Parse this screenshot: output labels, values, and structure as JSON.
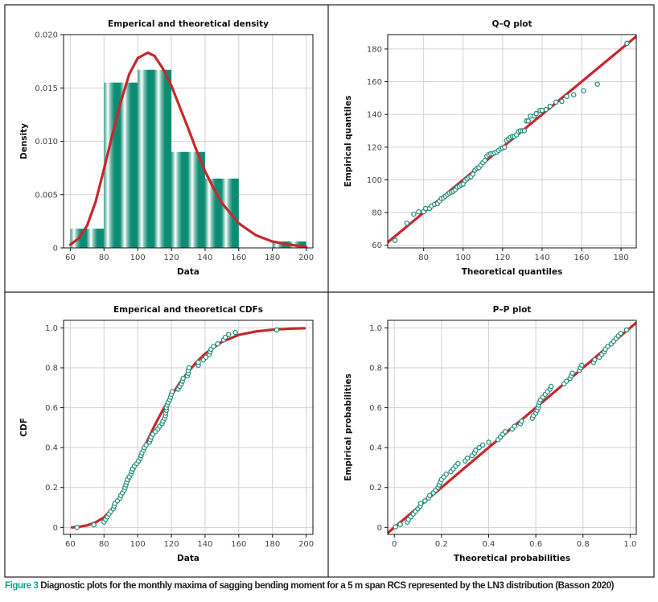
{
  "caption": {
    "label": "Figure 3",
    "text": "Diagnostic plots for the monthly maxima of sagging bending moment for a 5 m span RCS represented by the LN3 distribution (Basson 2020)"
  },
  "colors": {
    "fit_line": "#c8282d",
    "points": "#2a8f7f",
    "bars": "#0d8c74",
    "grid": "#d2d2d2",
    "caption_label": "#14a08a"
  },
  "chart_data": [
    {
      "id": "density",
      "type": "bar",
      "title": "Emperical and theoretical density",
      "xlabel": "Data",
      "ylabel": "Density",
      "xlim": [
        56,
        204
      ],
      "ylim": [
        0,
        0.02
      ],
      "xticks": [
        60,
        80,
        100,
        120,
        140,
        160,
        180,
        200
      ],
      "xtick_labels": [
        "60",
        "80",
        "100",
        "120",
        "140",
        "160",
        "180",
        "200"
      ],
      "yticks": [
        0,
        0.005,
        0.01,
        0.015,
        0.02
      ],
      "ytick_labels": [
        "0",
        "0.005",
        "0.010",
        "0.015",
        "0.020"
      ],
      "grid": true,
      "bins": [
        [
          60,
          80
        ],
        [
          80,
          100
        ],
        [
          100,
          120
        ],
        [
          120,
          140
        ],
        [
          140,
          160
        ],
        [
          160,
          180
        ],
        [
          180,
          200
        ]
      ],
      "values": [
        0.0018,
        0.0155,
        0.0167,
        0.009,
        0.0065,
        0,
        0.0006
      ],
      "curve": {
        "x": [
          60,
          65,
          70,
          75,
          80,
          85,
          90,
          95,
          100,
          106,
          110,
          115,
          120,
          125,
          130,
          135,
          140,
          145,
          150,
          160,
          170,
          180,
          190,
          200
        ],
        "y": [
          0.0003,
          0.0009,
          0.0021,
          0.0043,
          0.0074,
          0.0106,
          0.0137,
          0.0163,
          0.0178,
          0.0183,
          0.018,
          0.0168,
          0.0152,
          0.0132,
          0.0112,
          0.0091,
          0.0072,
          0.0056,
          0.0042,
          0.0023,
          0.0012,
          0.0006,
          0.0003,
          0.0001
        ]
      }
    },
    {
      "id": "qq",
      "type": "scatter",
      "title": "Q–Q plot",
      "xlabel": "Theoretical quantiles",
      "ylabel": "Empirical quantiles",
      "xlim": [
        61.8,
        187.7
      ],
      "ylim": [
        58.4,
        188.8
      ],
      "xticks": [
        80,
        100,
        120,
        140,
        160,
        180
      ],
      "xtick_labels": [
        "80",
        "100",
        "120",
        "140",
        "160",
        "180"
      ],
      "yticks": [
        60,
        80,
        100,
        120,
        140,
        160,
        180
      ],
      "ytick_labels": [
        "60",
        "80",
        "100",
        "120",
        "140",
        "160",
        "180"
      ],
      "grid": true,
      "line": {
        "x": [
          61.8,
          187.7
        ],
        "y": [
          61.8,
          187.7
        ]
      },
      "x": [
        65.5,
        71.5,
        75,
        77.5,
        80,
        81,
        83,
        84,
        85.5,
        87,
        88,
        89,
        90,
        91,
        92,
        93,
        94,
        95,
        96,
        97,
        98,
        99,
        100,
        101,
        102,
        103,
        104,
        105,
        106,
        107,
        108,
        109,
        110,
        111,
        112,
        113,
        114,
        115,
        116,
        117,
        118,
        119,
        120,
        121,
        122,
        123,
        124,
        125,
        126,
        127,
        128,
        129,
        130,
        131,
        132,
        133,
        134,
        136,
        137,
        139,
        140,
        142,
        144,
        147,
        150,
        152.5,
        156,
        161,
        168,
        183
      ],
      "y": [
        63,
        73.5,
        79,
        80.5,
        80.5,
        82.5,
        82.5,
        84,
        85,
        85.5,
        87,
        88.5,
        89,
        90,
        91,
        92,
        92.5,
        93,
        94,
        95.5,
        96,
        97,
        97.5,
        99.5,
        100.5,
        101.5,
        102,
        103.5,
        106,
        107,
        107.5,
        109,
        110.5,
        112,
        114.5,
        115.5,
        116,
        116,
        116.5,
        117,
        118,
        119,
        119.5,
        120,
        124,
        125,
        126,
        126.5,
        126.5,
        127.5,
        129.5,
        130,
        130,
        130,
        136,
        136,
        139,
        139,
        140.5,
        142.5,
        142.5,
        143,
        145,
        147.5,
        148,
        151,
        152,
        154.5,
        158.5,
        183.5
      ]
    },
    {
      "id": "cdf",
      "type": "line",
      "title": "Emperical and theoretical CDFs",
      "xlabel": "Data",
      "ylabel": "CDF",
      "xlim": [
        56,
        204
      ],
      "ylim": [
        -0.035,
        1.038
      ],
      "xticks": [
        60,
        80,
        100,
        120,
        140,
        160,
        180,
        200
      ],
      "xtick_labels": [
        "60",
        "80",
        "100",
        "120",
        "140",
        "160",
        "180",
        "200"
      ],
      "yticks": [
        0,
        0.2,
        0.4,
        0.6,
        0.8,
        1.0
      ],
      "ytick_labels": [
        "0",
        "0.2",
        "0.4",
        "0.6",
        "0.8",
        "1.0"
      ],
      "grid": true,
      "curve": {
        "x": [
          61,
          65,
          70,
          75,
          80,
          85,
          90,
          95,
          100,
          105,
          110,
          115,
          120,
          125,
          130,
          135,
          140,
          150,
          160,
          170,
          180,
          190,
          199
        ],
        "y": [
          0,
          0.003,
          0.01,
          0.025,
          0.05,
          0.095,
          0.16,
          0.24,
          0.33,
          0.42,
          0.51,
          0.59,
          0.66,
          0.725,
          0.78,
          0.83,
          0.87,
          0.93,
          0.965,
          0.982,
          0.991,
          0.996,
          0.998
        ]
      },
      "points": {
        "x": [
          64,
          74,
          80,
          81,
          82,
          83,
          84,
          85.5,
          86,
          86.5,
          88,
          89.5,
          90,
          91,
          92,
          92.5,
          93,
          93.5,
          94,
          95,
          96,
          96.5,
          97,
          98,
          99.5,
          100.5,
          101.5,
          102,
          102.5,
          103.5,
          104,
          105,
          107,
          107.5,
          108,
          109,
          110.5,
          112,
          113,
          114.5,
          115,
          116,
          116.5,
          116.5,
          117,
          117,
          117.5,
          118,
          119,
          119.5,
          120,
          120.5,
          124,
          125,
          126,
          126.5,
          127,
          129.5,
          130,
          130,
          130.5,
          136,
          136,
          139,
          140.5,
          142.5,
          143,
          143.5,
          145,
          147.5,
          151,
          152,
          154,
          158,
          182.5
        ],
        "y": [
          0,
          0.013,
          0.027,
          0.04,
          0.053,
          0.067,
          0.08,
          0.093,
          0.107,
          0.12,
          0.133,
          0.147,
          0.16,
          0.173,
          0.187,
          0.2,
          0.213,
          0.227,
          0.24,
          0.253,
          0.267,
          0.28,
          0.293,
          0.307,
          0.32,
          0.333,
          0.347,
          0.36,
          0.373,
          0.387,
          0.4,
          0.413,
          0.427,
          0.44,
          0.453,
          0.467,
          0.48,
          0.493,
          0.507,
          0.52,
          0.533,
          0.547,
          0.56,
          0.573,
          0.587,
          0.6,
          0.613,
          0.627,
          0.64,
          0.653,
          0.667,
          0.68,
          0.693,
          0.707,
          0.72,
          0.733,
          0.747,
          0.76,
          0.773,
          0.787,
          0.8,
          0.813,
          0.827,
          0.84,
          0.853,
          0.867,
          0.88,
          0.893,
          0.907,
          0.92,
          0.94,
          0.953,
          0.967,
          0.977,
          0.99
        ]
      }
    },
    {
      "id": "pp",
      "type": "scatter",
      "title": "P–P plot",
      "xlabel": "Theoretical probabilities",
      "ylabel": "Empirical probabilities",
      "xlim": [
        -0.028,
        1.026
      ],
      "ylim": [
        -0.035,
        1.038
      ],
      "xticks": [
        0,
        0.2,
        0.4,
        0.6,
        0.8,
        1.0
      ],
      "xtick_labels": [
        "0",
        "0.2",
        "0.4",
        "0.6",
        "0.8",
        "1.0"
      ],
      "yticks": [
        0,
        0.2,
        0.4,
        0.6,
        0.8,
        1.0
      ],
      "ytick_labels": [
        "0",
        "0.2",
        "0.4",
        "0.6",
        "0.8",
        "1.0"
      ],
      "grid": true,
      "line": {
        "x": [
          -0.035,
          1.04
        ],
        "y": [
          -0.035,
          1.04
        ]
      },
      "x": [
        0.005,
        0.025,
        0.055,
        0.06,
        0.07,
        0.08,
        0.09,
        0.1,
        0.11,
        0.112,
        0.13,
        0.145,
        0.15,
        0.165,
        0.175,
        0.185,
        0.19,
        0.195,
        0.2,
        0.21,
        0.22,
        0.24,
        0.25,
        0.26,
        0.27,
        0.3,
        0.31,
        0.33,
        0.34,
        0.345,
        0.36,
        0.375,
        0.4,
        0.44,
        0.45,
        0.46,
        0.47,
        0.5,
        0.51,
        0.535,
        0.54,
        0.585,
        0.59,
        0.6,
        0.605,
        0.61,
        0.612,
        0.615,
        0.62,
        0.63,
        0.64,
        0.65,
        0.66,
        0.665,
        0.72,
        0.73,
        0.745,
        0.75,
        0.755,
        0.785,
        0.79,
        0.795,
        0.845,
        0.85,
        0.87,
        0.88,
        0.89,
        0.895,
        0.905,
        0.92,
        0.93,
        0.94,
        0.95,
        0.96,
        0.985
      ],
      "y": [
        0.003,
        0.015,
        0.027,
        0.04,
        0.053,
        0.067,
        0.08,
        0.093,
        0.107,
        0.12,
        0.133,
        0.147,
        0.16,
        0.173,
        0.187,
        0.2,
        0.213,
        0.227,
        0.24,
        0.253,
        0.267,
        0.28,
        0.293,
        0.307,
        0.32,
        0.333,
        0.347,
        0.36,
        0.373,
        0.387,
        0.4,
        0.413,
        0.427,
        0.44,
        0.453,
        0.467,
        0.48,
        0.493,
        0.507,
        0.52,
        0.533,
        0.547,
        0.56,
        0.573,
        0.587,
        0.6,
        0.613,
        0.627,
        0.64,
        0.653,
        0.667,
        0.68,
        0.693,
        0.707,
        0.72,
        0.733,
        0.747,
        0.76,
        0.773,
        0.787,
        0.8,
        0.813,
        0.827,
        0.84,
        0.853,
        0.867,
        0.88,
        0.893,
        0.907,
        0.92,
        0.933,
        0.947,
        0.96,
        0.973,
        0.99
      ]
    }
  ]
}
